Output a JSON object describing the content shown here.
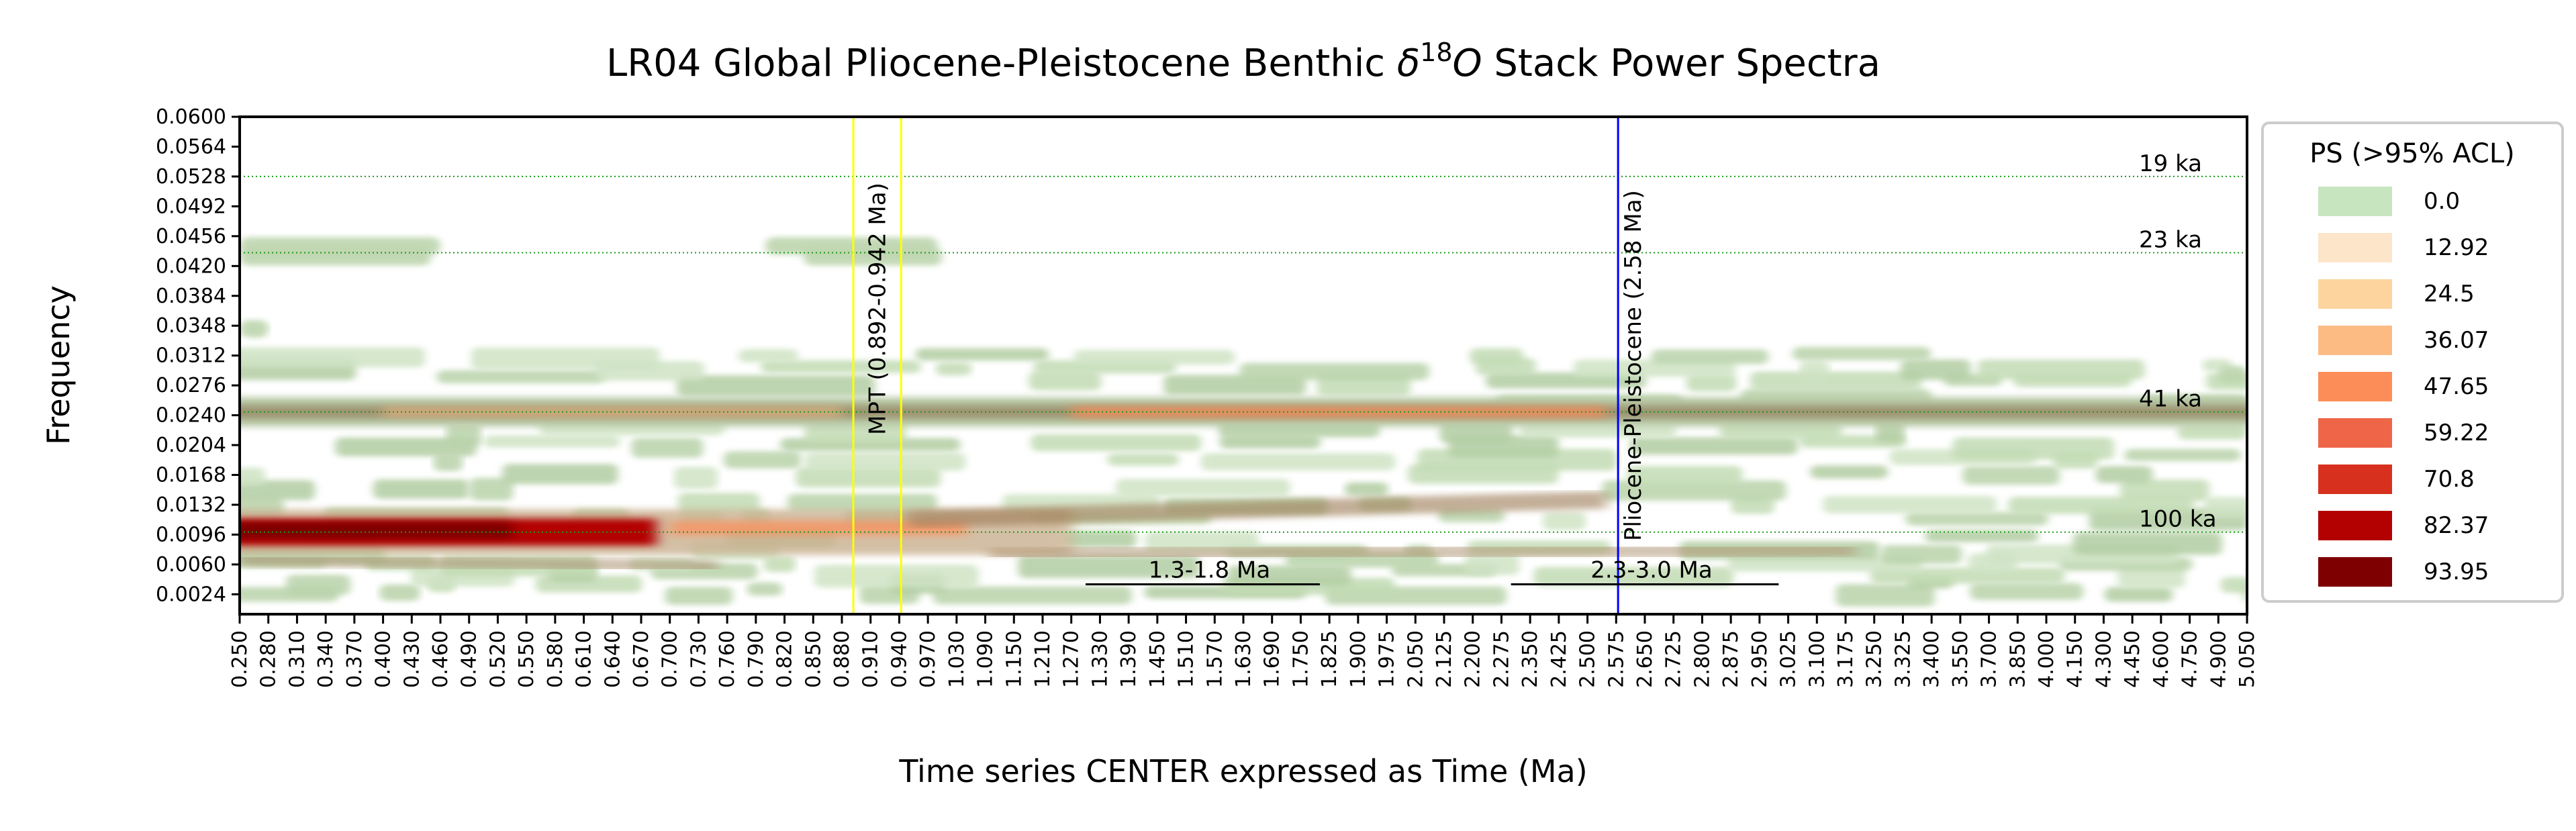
{
  "chart_data": {
    "type": "heatmap",
    "title": "LR04 Global Pliocene-Pleistocene Benthic δ18O Stack Power Spectra",
    "title_parts": {
      "pre": "LR04 Global Pliocene-Pleistocene Benthic ",
      "delta": "δ",
      "sup": "18",
      "o": "O",
      "post": " Stack Power Spectra"
    },
    "xlabel": "Time series CENTER expressed as Time (Ma)",
    "ylabel": "Frequency",
    "x_range": [
      0.25,
      5.05
    ],
    "y_range": [
      0.0,
      0.06
    ],
    "x_ticks": [
      "0.250",
      "0.280",
      "0.310",
      "0.340",
      "0.370",
      "0.400",
      "0.430",
      "0.460",
      "0.490",
      "0.520",
      "0.550",
      "0.580",
      "0.610",
      "0.640",
      "0.670",
      "0.700",
      "0.730",
      "0.760",
      "0.790",
      "0.820",
      "0.850",
      "0.880",
      "0.910",
      "0.940",
      "0.970",
      "1.030",
      "1.090",
      "1.150",
      "1.210",
      "1.270",
      "1.330",
      "1.390",
      "1.450",
      "1.510",
      "1.570",
      "1.630",
      "1.690",
      "1.750",
      "1.825",
      "1.900",
      "1.975",
      "2.050",
      "2.125",
      "2.200",
      "2.275",
      "2.350",
      "2.425",
      "2.500",
      "2.575",
      "2.650",
      "2.725",
      "2.800",
      "2.875",
      "2.950",
      "3.025",
      "3.100",
      "3.175",
      "3.250",
      "3.325",
      "3.400",
      "3.550",
      "3.700",
      "3.850",
      "4.000",
      "4.150",
      "4.300",
      "4.450",
      "4.600",
      "4.750",
      "4.900",
      "5.050"
    ],
    "y_ticks": [
      "0.0024",
      "0.0060",
      "0.0096",
      "0.0132",
      "0.0168",
      "0.0204",
      "0.0240",
      "0.0276",
      "0.0312",
      "0.0348",
      "0.0384",
      "0.0420",
      "0.0456",
      "0.0492",
      "0.0528",
      "0.0564",
      "0.0600"
    ],
    "y_tick_values": [
      0.0024,
      0.006,
      0.0096,
      0.0132,
      0.0168,
      0.0204,
      0.024,
      0.0276,
      0.0312,
      0.0348,
      0.0384,
      0.042,
      0.0456,
      0.0492,
      0.0528,
      0.0564,
      0.06
    ],
    "legend": {
      "title": "PS (>95% ACL)",
      "placement": "right",
      "entries": [
        {
          "label": "0.0",
          "color": "#c7e6bf"
        },
        {
          "label": "12.92",
          "color": "#fde5c9"
        },
        {
          "label": "24.5",
          "color": "#fdd49e"
        },
        {
          "label": "36.07",
          "color": "#fdbb84"
        },
        {
          "label": "47.65",
          "color": "#fc8d59"
        },
        {
          "label": "59.22",
          "color": "#ef6548"
        },
        {
          "label": "70.8",
          "color": "#d7301f"
        },
        {
          "label": "82.37",
          "color": "#b30000"
        },
        {
          "label": "93.95",
          "color": "#7f0000"
        }
      ]
    },
    "reference_lines": [
      {
        "label": "19 ka",
        "frequency": 0.0528
      },
      {
        "label": "23 ka",
        "frequency": 0.0436
      },
      {
        "label": "41 ka",
        "frequency": 0.0244
      },
      {
        "label": "100 ka",
        "frequency": 0.0099
      }
    ],
    "vertical_markers": [
      {
        "label": "MPT (0.892-0.942 Ma)",
        "x_start": 0.892,
        "x_end": 0.942,
        "color": "#ffff00"
      },
      {
        "label": "Pliocene-Pleistocene (2.58 Ma)",
        "x": 2.58,
        "color": "#0000ff"
      }
    ],
    "interval_annotations": [
      {
        "label": "1.3-1.8 Ma",
        "x_start": 1.3,
        "x_end": 1.8,
        "frequency": 0.0036
      },
      {
        "label": "2.3-3.0 Ma",
        "x_start": 2.3,
        "x_end": 3.0,
        "frequency": 0.0036
      }
    ],
    "power_bands": [
      {
        "x_start": 0.25,
        "x_end": 1.2,
        "frequency": 0.0099,
        "max_power": 93.95
      },
      {
        "x_start": 0.25,
        "x_end": 5.05,
        "frequency": 0.0244,
        "max_power": 59.22
      },
      {
        "x_start": 0.9,
        "x_end": 2.6,
        "frequency": 0.013,
        "max_power": 36.07
      },
      {
        "x_start": 1.1,
        "x_end": 3.2,
        "frequency": 0.0075,
        "max_power": 24.5
      },
      {
        "x_start": 0.25,
        "x_end": 0.46,
        "frequency": 0.0436,
        "max_power": 0.0
      },
      {
        "x_start": 0.25,
        "x_end": 0.28,
        "frequency": 0.0345,
        "max_power": 0.0
      }
    ],
    "grid": false
  }
}
